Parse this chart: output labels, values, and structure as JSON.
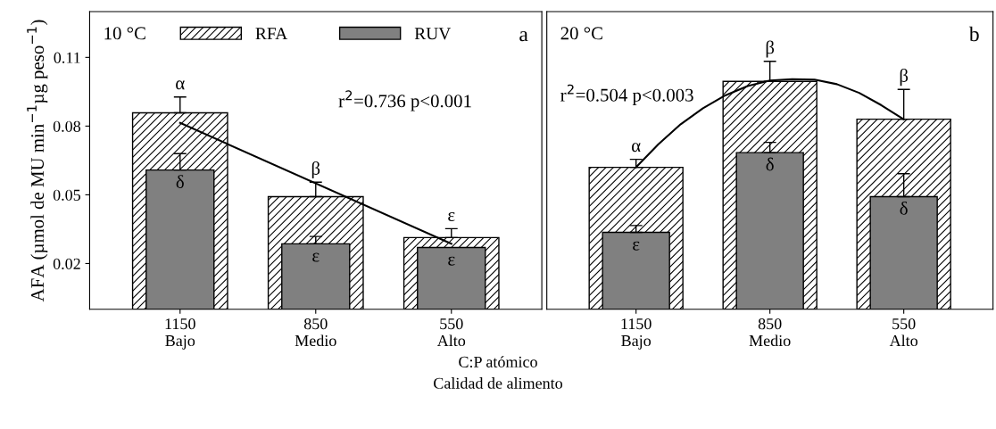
{
  "chart_data": [
    {
      "type": "bar",
      "title": "10 °C",
      "subtitle": "a",
      "xlabel": "C:P atómico\nCalidad de alimento",
      "ylabel": "AFA (µmol de MU min$^{−1}$µg peso$^{−1}$)",
      "x": [
        1150,
        850,
        550
      ],
      "series": [
        {
          "name": "RFA",
          "color": "#000000",
          "values": [
            0.0858,
            0.0492,
            0.0313
          ],
          "errors": [
            [
              0.0858,
              0.0927
            ],
            [
              0.0492,
              0.0555
            ],
            [
              0.0313,
              0.0352
            ]
          ],
          "value_labels": [
            "α",
            "β",
            "ε"
          ]
        },
        {
          "name": "RUV",
          "color": "#808080",
          "values": [
            0.0608,
            0.0286,
            0.027
          ],
          "errors": [
            [
              0.0608,
              0.068
            ],
            [
              0.0286,
              0.0318
            ],
            null
          ],
          "value_labels": [
            "δ",
            "ε",
            "ε"
          ]
        },
        {
          "type": "line",
          "color": "#000000",
          "x": [
            1150,
            550
          ],
          "values": [
            0.0814,
            0.0286
          ]
        }
      ],
      "xlim": [
        1350,
        350
      ],
      "xticks": [
        {
          "value": 1150,
          "label": "1150\nBajo"
        },
        {
          "value": 850,
          "label": "850\nMedio"
        },
        {
          "value": 550,
          "label": "550\nAlto"
        }
      ],
      "ylim": [
        0,
        0.13
      ],
      "yticks": [
        0.02,
        0.05,
        0.08,
        0.11
      ],
      "legend": "top",
      "annotations": [
        "r$^{2}$=0.736 p<0.001"
      ]
    },
    {
      "type": "bar",
      "title": "20 °C",
      "subtitle": "b",
      "x": [
        1150,
        850,
        550
      ],
      "series": [
        {
          "color": "#000000",
          "values": [
            0.062,
            0.0995,
            0.083
          ],
          "errors": [
            [
              0.062,
              0.0655
            ],
            [
              0.0995,
              0.1083
            ],
            [
              0.083,
              0.096
            ]
          ],
          "value_labels": [
            "α",
            "β",
            "β"
          ]
        },
        {
          "color": "#808080",
          "values": [
            0.0336,
            0.0684,
            0.0492
          ],
          "errors": [
            [
              0.0336,
              0.0366
            ],
            [
              0.0684,
              0.0729
            ],
            [
              0.0492,
              0.0592
            ]
          ],
          "value_labels": [
            "ε",
            "δ",
            "δ"
          ]
        },
        {
          "type": "line",
          "color": "#000000",
          "x": [
            1150,
            1100,
            1050,
            1000,
            950,
            900,
            850,
            800,
            750,
            700,
            650,
            600,
            550
          ],
          "values": [
            0.062,
            0.0721,
            0.0808,
            0.0878,
            0.0934,
            0.0975,
            0.0999,
            0.1005,
            0.1003,
            0.0983,
            0.0945,
            0.0891,
            0.0829
          ]
        }
      ],
      "xlim": [
        1350,
        350
      ],
      "xticks": [
        {
          "value": 1150,
          "label": "1150\nBajo"
        },
        {
          "value": 850,
          "label": "850\nMedio"
        },
        {
          "value": 550,
          "label": "550\nAlto"
        }
      ],
      "ylim": [
        0,
        0.13
      ],
      "yticks": [
        0.02,
        0.05,
        0.08,
        0.11
      ],
      "tick_labels": "x",
      "annotations": [
        "r$^{2}$=0.504 p<0.003"
      ]
    }
  ]
}
